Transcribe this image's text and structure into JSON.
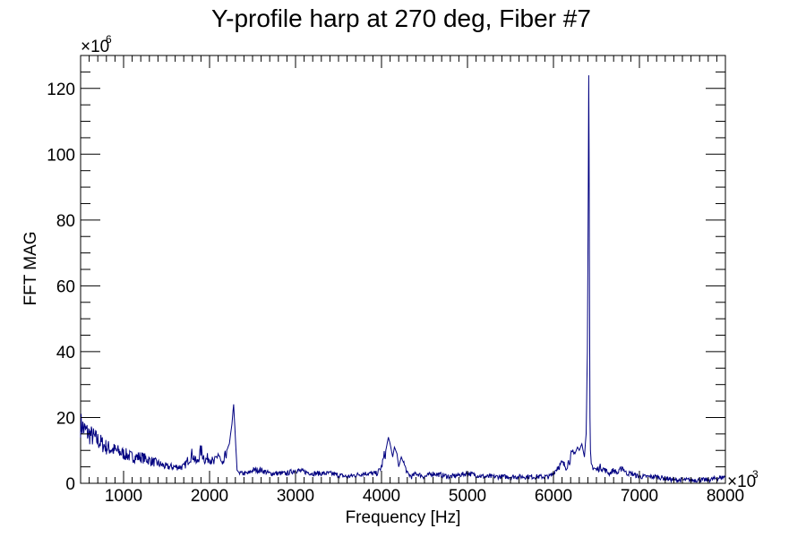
{
  "chart_data": {
    "type": "line",
    "title": "Y-profile harp at 270 deg, Fiber #7",
    "xlabel": "Frequency [Hz]",
    "ylabel": "FFT MAG",
    "xlim": [
      500,
      8000
    ],
    "ylim": [
      0,
      130
    ],
    "x_ticks": [
      1000,
      2000,
      3000,
      4000,
      5000,
      6000,
      7000,
      8000
    ],
    "x_tick_labels": [
      "1000",
      "2000",
      "3000",
      "4000",
      "5000",
      "6000",
      "7000",
      "8000"
    ],
    "y_ticks": [
      0,
      20,
      40,
      60,
      80,
      100,
      120
    ],
    "y_tick_labels": [
      "0",
      "20",
      "40",
      "60",
      "80",
      "100",
      "120"
    ],
    "x_exponent_base": "×10",
    "x_exponent_power": "3",
    "y_exponent_base": "×10",
    "y_exponent_power": "6",
    "grid": false,
    "legend": "none",
    "series": [
      {
        "color": "#000080",
        "x": [
          500,
          550,
          600,
          650,
          700,
          800,
          900,
          1000,
          1100,
          1200,
          1300,
          1400,
          1500,
          1600,
          1700,
          1750,
          1800,
          1850,
          1900,
          1950,
          2000,
          2050,
          2100,
          2150,
          2200,
          2230,
          2260,
          2280,
          2300,
          2320,
          2350,
          2400,
          2450,
          2500,
          2600,
          2700,
          2800,
          2900,
          3000,
          3200,
          3400,
          3600,
          3800,
          3950,
          4000,
          4050,
          4080,
          4100,
          4130,
          4150,
          4180,
          4200,
          4230,
          4260,
          4300,
          4350,
          4400,
          4500,
          4600,
          4800,
          5000,
          5200,
          5400,
          5600,
          5800,
          5950,
          6000,
          6050,
          6100,
          6150,
          6200,
          6250,
          6280,
          6300,
          6330,
          6360,
          6380,
          6395,
          6405,
          6410,
          6415,
          6420,
          6425,
          6430,
          6440,
          6460,
          6500,
          6550,
          6600,
          6650,
          6700,
          6750,
          6800,
          6850,
          6900,
          7000,
          7200,
          7400,
          7600,
          7800,
          8000
        ],
        "values": [
          18,
          16,
          15,
          14,
          13,
          11,
          10,
          9,
          8,
          8,
          7,
          6,
          5,
          5,
          5,
          7,
          9,
          6,
          10,
          7,
          8,
          6,
          9,
          5,
          10,
          12,
          18,
          24,
          14,
          4,
          3,
          3,
          3,
          4,
          4,
          3,
          3,
          3,
          4,
          3,
          3,
          2,
          3,
          3,
          5,
          10,
          14,
          12,
          8,
          11,
          9,
          5,
          8,
          6,
          3,
          2,
          3,
          2,
          3,
          2,
          3,
          2,
          2,
          2,
          2,
          2,
          3,
          5,
          6,
          5,
          8,
          9,
          11,
          10,
          12,
          8,
          15,
          40,
          90,
          124,
          100,
          55,
          20,
          10,
          6,
          5,
          4,
          5,
          4,
          3,
          4,
          3,
          5,
          3,
          3,
          2,
          2,
          1,
          1,
          1,
          2
        ]
      }
    ]
  }
}
